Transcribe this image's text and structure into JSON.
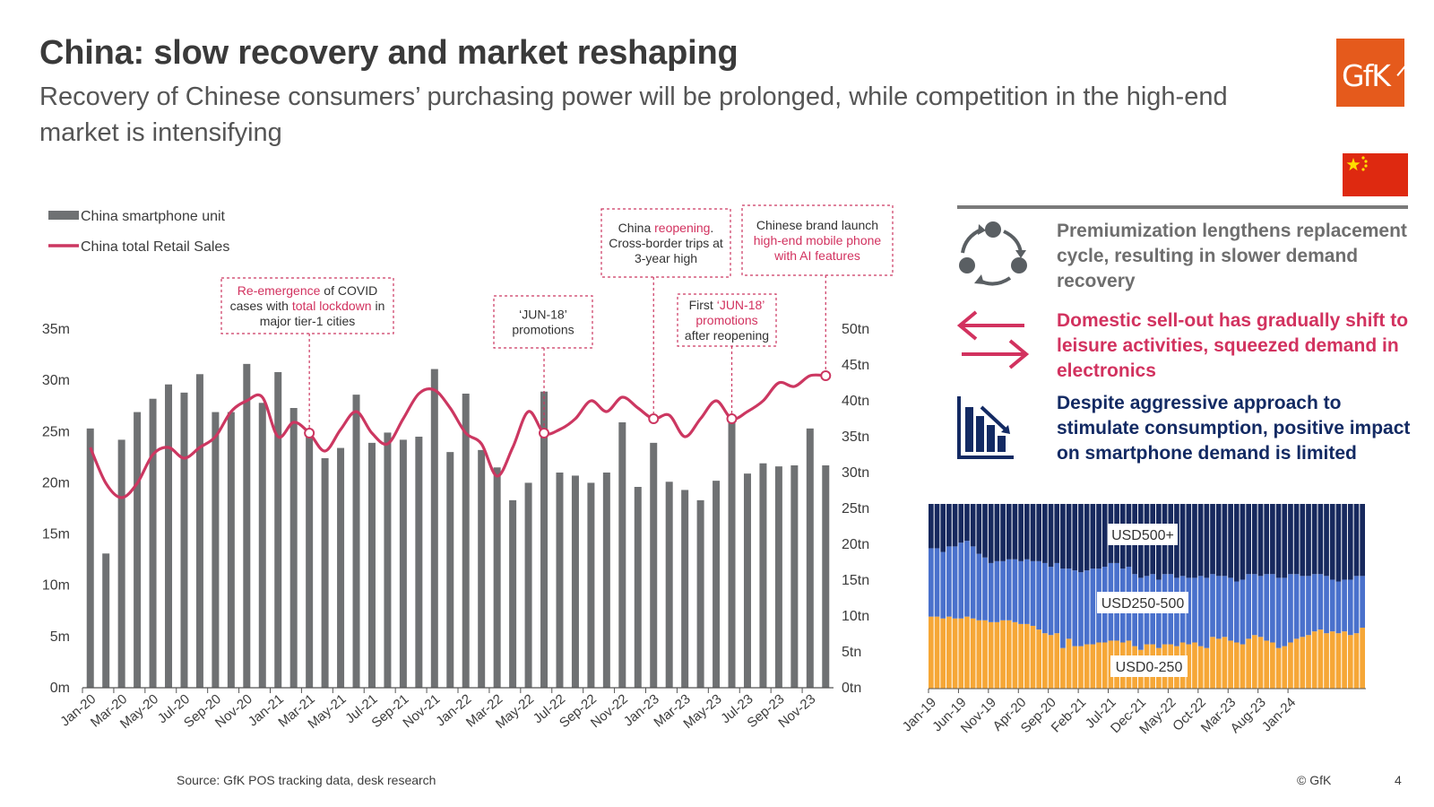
{
  "header": {
    "title": "China: slow recovery and market reshaping",
    "subtitle": "Recovery of Chinese consumers’ purchasing power will be prolonged, while competition in the high-end market is intensifying",
    "logo_text": "GfK"
  },
  "colors": {
    "bar": "#6f7173",
    "line": "#cc3761",
    "accent_pink": "#d2325f",
    "navy": "#132a63",
    "seg_high": "#17295e",
    "seg_mid": "#4a71cc",
    "seg_low": "#f6a737",
    "brand_orange": "#e55a1c"
  },
  "chart_data": [
    {
      "type": "bar+line",
      "categories": [
        "Jan-20",
        "Feb-20",
        "Mar-20",
        "Apr-20",
        "May-20",
        "Jun-20",
        "Jul-20",
        "Aug-20",
        "Sep-20",
        "Oct-20",
        "Nov-20",
        "Dec-20",
        "Jan-21",
        "Feb-21",
        "Mar-21",
        "Apr-21",
        "May-21",
        "Jun-21",
        "Jul-21",
        "Aug-21",
        "Sep-21",
        "Oct-21",
        "Nov-21",
        "Dec-21",
        "Jan-22",
        "Feb-22",
        "Mar-22",
        "Apr-22",
        "May-22",
        "Jun-22",
        "Jul-22",
        "Aug-22",
        "Sep-22",
        "Oct-22",
        "Nov-22",
        "Dec-22",
        "Jan-23",
        "Feb-23",
        "Mar-23",
        "Apr-23",
        "May-23",
        "Jun-23",
        "Jul-23",
        "Aug-23",
        "Sep-23",
        "Oct-23",
        "Nov-23",
        "Dec-23"
      ],
      "x_tick_labels": [
        "Jan-20",
        "Mar-20",
        "May-20",
        "Jul-20",
        "Sep-20",
        "Nov-20",
        "Jan-21",
        "Mar-21",
        "May-21",
        "Jul-21",
        "Sep-21",
        "Nov-21",
        "Jan-22",
        "Mar-22",
        "May-22",
        "Jul-22",
        "Sep-22",
        "Nov-22",
        "Jan-23",
        "Mar-23",
        "May-23",
        "Jul-23",
        "Sep-23",
        "Nov-23"
      ],
      "series": [
        {
          "name": "China smartphone unit",
          "kind": "bar",
          "axis": "left",
          "values": [
            25.3,
            13.1,
            24.2,
            26.9,
            28.2,
            29.6,
            28.8,
            30.6,
            26.9,
            26.9,
            31.6,
            27.8,
            30.8,
            27.3,
            24.7,
            22.4,
            23.4,
            28.6,
            23.9,
            24.9,
            24.2,
            24.5,
            31.1,
            23.0,
            28.7,
            23.2,
            21.5,
            18.3,
            20.0,
            28.9,
            21.0,
            20.7,
            20.0,
            21.0,
            25.9,
            19.6,
            23.9,
            20.1,
            19.3,
            18.3,
            20.2,
            26.4,
            20.9,
            21.9,
            21.6,
            21.7,
            25.3,
            21.7
          ]
        },
        {
          "name": "China total Retail Sales",
          "kind": "line",
          "axis": "right",
          "values": [
            33.5,
            28.5,
            26.5,
            28.5,
            32.5,
            33.5,
            32.0,
            33.5,
            35.0,
            38.5,
            40.0,
            40.5,
            35.0,
            37.0,
            35.5,
            33.0,
            36.0,
            38.5,
            35.5,
            34.0,
            37.5,
            41.0,
            41.5,
            39.0,
            35.5,
            34.0,
            29.5,
            33.5,
            38.5,
            35.5,
            36.0,
            37.5,
            40.0,
            38.5,
            40.5,
            39.0,
            37.5,
            38.0,
            35.0,
            37.5,
            40.0,
            37.5,
            38.5,
            40.0,
            42.5,
            42.0,
            43.5,
            43.5
          ]
        }
      ],
      "left_axis": {
        "range": [
          0,
          35
        ],
        "ticks": [
          "0m",
          "5m",
          "10m",
          "15m",
          "20m",
          "25m",
          "30m",
          "35m"
        ]
      },
      "right_axis": {
        "range": [
          0,
          50
        ],
        "ticks": [
          "0tn",
          "5tn",
          "10tn",
          "15tn",
          "20tn",
          "25tn",
          "30tn",
          "35tn",
          "40tn",
          "45tn",
          "50tn"
        ]
      },
      "legend_position": "top-left",
      "annotations": [
        {
          "at": "Mar-21",
          "parts": [
            {
              "text": "Re-emergence",
              "hl": true
            },
            {
              "text": " of COVID",
              "hl": false
            },
            {
              "text": "\n",
              "hl": false
            },
            {
              "text": "cases with ",
              "hl": false
            },
            {
              "text": "total lockdown",
              "hl": true
            },
            {
              "text": " in",
              "hl": false
            },
            {
              "text": "\n",
              "hl": false
            },
            {
              "text": "major tier-1 cities",
              "hl": false
            }
          ]
        },
        {
          "at": "Jun-22",
          "parts": [
            {
              "text": "‘JUN-18’",
              "hl": false
            },
            {
              "text": "\n",
              "hl": false
            },
            {
              "text": "promotions",
              "hl": false
            }
          ]
        },
        {
          "at": "Jan-23",
          "parts": [
            {
              "text": "China ",
              "hl": false
            },
            {
              "text": "reopening",
              "hl": true
            },
            {
              "text": ".",
              "hl": false
            },
            {
              "text": "\n",
              "hl": false
            },
            {
              "text": "Cross-border trips at",
              "hl": false
            },
            {
              "text": "\n",
              "hl": false
            },
            {
              "text": "3-year high",
              "hl": false
            }
          ]
        },
        {
          "at": "Jun-23",
          "parts": [
            {
              "text": "First ",
              "hl": false
            },
            {
              "text": "‘JUN-18’",
              "hl": true
            },
            {
              "text": "\n",
              "hl": false
            },
            {
              "text": "promotions",
              "hl": true
            },
            {
              "text": "\n",
              "hl": false
            },
            {
              "text": "after reopening",
              "hl": false
            }
          ]
        },
        {
          "at": "Dec-23",
          "parts": [
            {
              "text": "Chinese brand launch",
              "hl": false
            },
            {
              "text": "\n",
              "hl": false
            },
            {
              "text": "high-end mobile phone",
              "hl": true
            },
            {
              "text": "\n",
              "hl": false
            },
            {
              "text": "with AI features",
              "hl": true
            }
          ]
        }
      ]
    },
    {
      "type": "stacked-bar-100",
      "x_tick_labels": [
        "Jan-19",
        "Jun-19",
        "Nov-19",
        "Apr-20",
        "Sep-20",
        "Feb-21",
        "Jul-21",
        "Dec-21",
        "May-22",
        "Oct-22",
        "Mar-23",
        "Aug-23",
        "Jan-24"
      ],
      "series_names": [
        "USD0-250",
        "USD250-500",
        "USD500+"
      ],
      "low_pct": [
        39,
        39,
        38,
        39,
        38,
        38,
        39,
        38,
        37,
        37,
        36,
        36,
        37,
        37,
        36,
        35,
        35,
        34,
        32,
        30,
        29,
        30,
        22,
        27,
        23,
        23,
        24,
        24,
        25,
        25,
        26,
        26,
        25,
        26,
        23,
        21,
        24,
        24,
        22,
        24,
        24,
        23,
        25,
        24,
        25,
        23,
        22,
        28,
        27,
        28,
        26,
        25,
        24,
        27,
        29,
        28,
        26,
        25,
        22,
        23,
        25,
        27,
        28,
        29,
        31,
        32,
        30,
        31,
        30,
        31,
        29,
        30,
        33
      ],
      "mid_pct": [
        37,
        37,
        36,
        38,
        39,
        41,
        41,
        39,
        36,
        34,
        32,
        33,
        32,
        33,
        34,
        34,
        35,
        35,
        37,
        38,
        37,
        38,
        43,
        38,
        41,
        40,
        40,
        41,
        40,
        41,
        42,
        42,
        40,
        40,
        39,
        39,
        37,
        38,
        37,
        38,
        38,
        37,
        36,
        36,
        35,
        38,
        38,
        34,
        34,
        33,
        34,
        33,
        35,
        35,
        33,
        33,
        36,
        37,
        38,
        37,
        37,
        35,
        33,
        32,
        31,
        30,
        31,
        28,
        28,
        28,
        30,
        31,
        28
      ],
      "label_high": "USD500+",
      "label_mid": "USD250-500",
      "label_low": "USD0-250"
    }
  ],
  "insights": [
    {
      "icon": "cycle-icon",
      "text": "Premiumization lengthens replacement cycle, resulting in slower demand recovery"
    },
    {
      "icon": "swap-arrows-icon",
      "text": "Domestic sell-out has gradually shift to leisure activities, squeezed demand in electronics"
    },
    {
      "icon": "declining-chart-icon",
      "text": "Despite aggressive approach to stimulate consumption, positive impact on smartphone demand is limited"
    }
  ],
  "footer": {
    "source": "Source: GfK POS tracking data, desk research",
    "copyright": "© GfK",
    "page": "4"
  }
}
